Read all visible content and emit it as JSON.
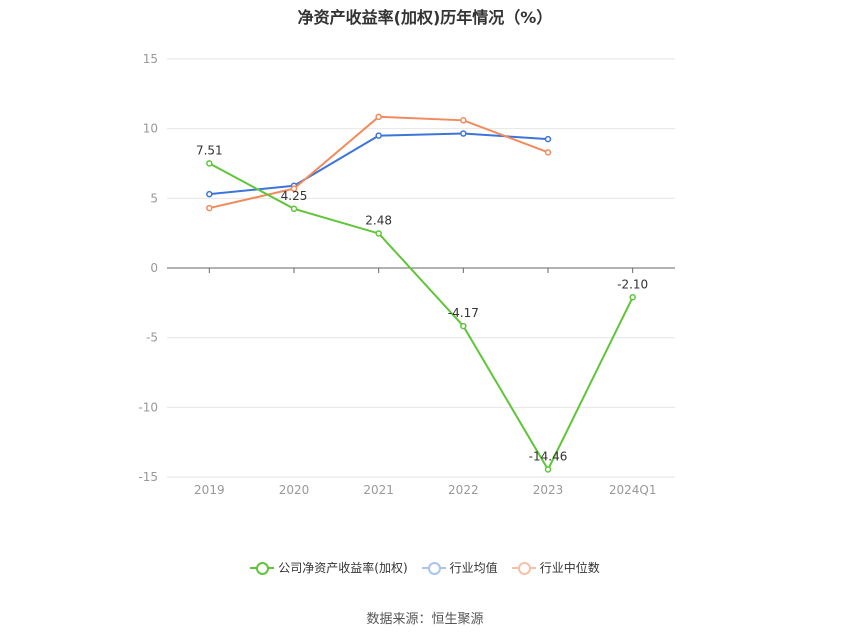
{
  "title": "净资产收益率(加权)历年情况（%）",
  "source": "数据来源：恒生聚源",
  "chart_data": {
    "type": "line",
    "title": "净资产收益率(加权)历年情况（%）",
    "categories": [
      "2019",
      "2020",
      "2021",
      "2022",
      "2023",
      "2024Q1"
    ],
    "ylim": [
      -15,
      15
    ],
    "yticks": [
      15,
      10,
      5,
      0,
      -5,
      -10,
      -15
    ],
    "grid": true,
    "legend_position": "bottom",
    "series": [
      {
        "name": "公司净资产收益率(加权)",
        "color": "#5fc539",
        "values": [
          7.51,
          4.25,
          2.48,
          -4.17,
          -14.46,
          -2.1
        ],
        "labels": [
          "7.51",
          "4.25",
          "2.48",
          "-4.17",
          "-14.46",
          "-2.10"
        ]
      },
      {
        "name": "行业均值",
        "color": "#3d74d9",
        "values": [
          5.3,
          5.9,
          9.5,
          9.65,
          9.25,
          null
        ]
      },
      {
        "name": "行业中位数",
        "color": "#f18a5c",
        "values": [
          4.3,
          5.7,
          10.85,
          10.6,
          8.3,
          null
        ]
      }
    ]
  }
}
